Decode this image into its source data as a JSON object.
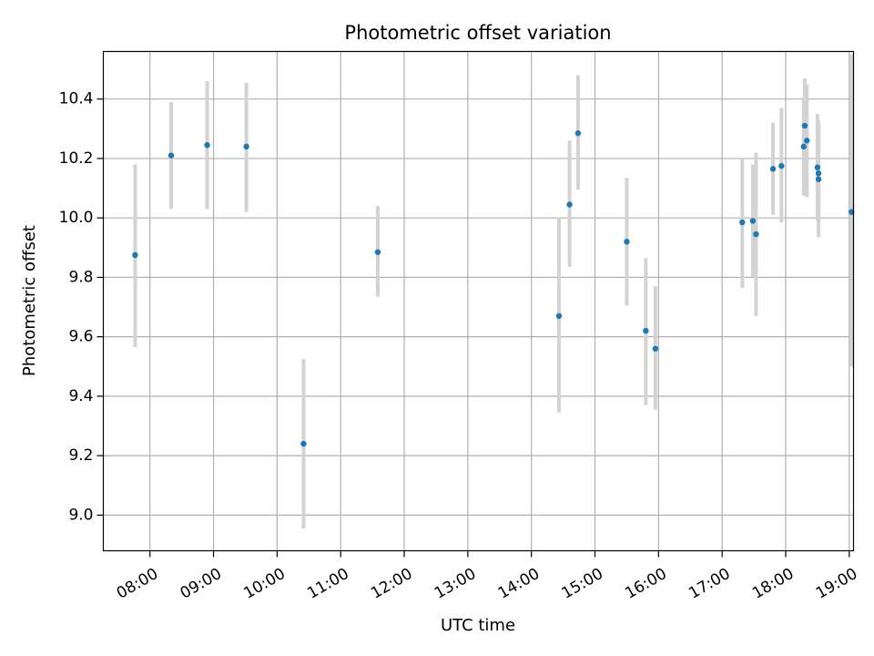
{
  "chart_data": {
    "type": "scatter",
    "title": "Photometric offset variation",
    "xlabel": "UTC time",
    "ylabel": "Photometric offset",
    "xlim": [
      "07:16",
      "19:04"
    ],
    "ylim": [
      8.88,
      10.56
    ],
    "x_ticks": [
      "08:00",
      "09:00",
      "10:00",
      "11:00",
      "12:00",
      "13:00",
      "14:00",
      "15:00",
      "16:00",
      "17:00",
      "18:00",
      "19:00"
    ],
    "y_ticks": [
      9.0,
      9.2,
      9.4,
      9.6,
      9.8,
      10.0,
      10.2,
      10.4
    ],
    "y_tick_labels": [
      "9.0",
      "9.2",
      "9.4",
      "9.6",
      "9.8",
      "10.0",
      "10.2",
      "10.4"
    ],
    "grid": true,
    "legend": "none",
    "point_color": "#1f77b4",
    "errorbar_color": "#d3d3d3",
    "grid_color": "#b0b0b0",
    "series": [
      {
        "points": [
          {
            "time": "07:46",
            "y": 9.875,
            "low": 9.565,
            "high": 10.18
          },
          {
            "time": "08:20",
            "y": 10.21,
            "low": 10.03,
            "high": 10.39
          },
          {
            "time": "08:54",
            "y": 10.245,
            "low": 10.03,
            "high": 10.46
          },
          {
            "time": "09:31",
            "y": 10.24,
            "low": 10.02,
            "high": 10.455
          },
          {
            "time": "10:25",
            "y": 9.24,
            "low": 8.955,
            "high": 9.525
          },
          {
            "time": "11:35",
            "y": 9.885,
            "low": 9.735,
            "high": 10.04
          },
          {
            "time": "14:26",
            "y": 9.67,
            "low": 9.345,
            "high": 10.0
          },
          {
            "time": "14:36",
            "y": 10.045,
            "low": 9.835,
            "high": 10.26
          },
          {
            "time": "14:44",
            "y": 10.285,
            "low": 10.095,
            "high": 10.48
          },
          {
            "time": "15:30",
            "y": 9.92,
            "low": 9.705,
            "high": 10.135
          },
          {
            "time": "15:48",
            "y": 9.62,
            "low": 9.37,
            "high": 9.865
          },
          {
            "time": "15:57",
            "y": 9.56,
            "low": 9.355,
            "high": 9.77
          },
          {
            "time": "17:19",
            "y": 9.985,
            "low": 9.765,
            "high": 10.2
          },
          {
            "time": "17:29",
            "y": 9.99,
            "low": 9.8,
            "high": 10.18
          },
          {
            "time": "17:32",
            "y": 9.945,
            "low": 9.67,
            "high": 10.22
          },
          {
            "time": "17:48",
            "y": 10.165,
            "low": 10.01,
            "high": 10.32
          },
          {
            "time": "17:56",
            "y": 10.175,
            "low": 9.985,
            "high": 10.37
          },
          {
            "time": "18:17",
            "y": 10.24,
            "low": 10.075,
            "high": 10.405
          },
          {
            "time": "18:18",
            "y": 10.31,
            "low": 10.15,
            "high": 10.47
          },
          {
            "time": "18:20",
            "y": 10.26,
            "low": 10.07,
            "high": 10.45
          },
          {
            "time": "18:30",
            "y": 10.17,
            "low": 9.99,
            "high": 10.35
          },
          {
            "time": "18:31",
            "y": 10.15,
            "low": 9.97,
            "high": 10.33
          },
          {
            "time": "18:31",
            "y": 10.13,
            "low": 9.935,
            "high": 10.325
          },
          {
            "time": "19:02",
            "y": 10.02,
            "low": 9.5,
            "high": 10.55
          }
        ]
      }
    ]
  }
}
